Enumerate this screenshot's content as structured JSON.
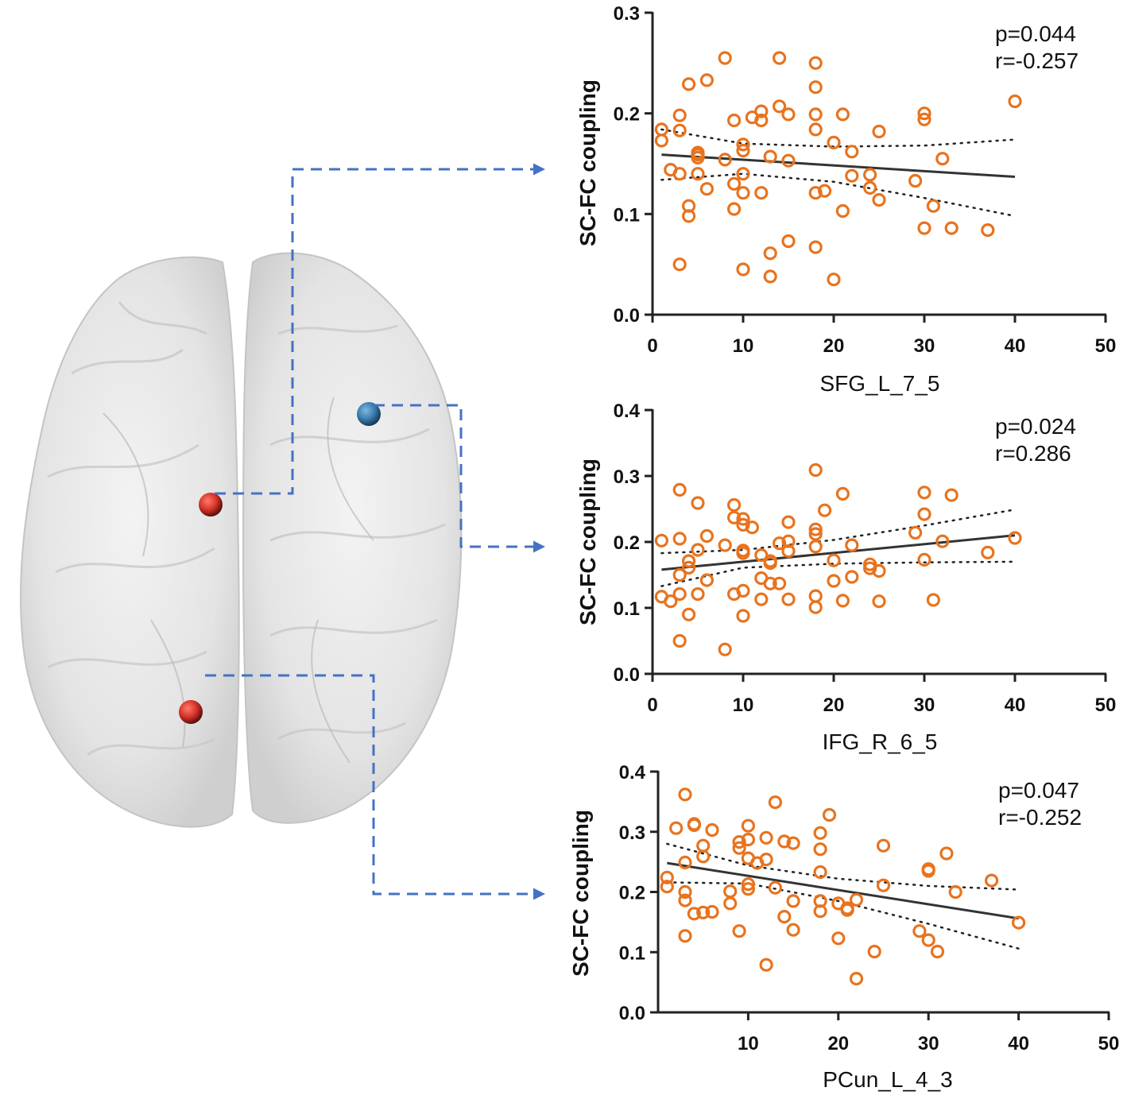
{
  "colors": {
    "point": "#e8731e",
    "brain_node_red": "#d9352a",
    "brain_node_blue": "#3c7fb0",
    "connector": "#4472c4"
  },
  "brain": {
    "nodes": [
      {
        "name": "SFG_L_7_5",
        "color": "red"
      },
      {
        "name": "IFG_R_6_5",
        "color": "blue"
      },
      {
        "name": "PCun_L_4_3",
        "color": "red"
      }
    ]
  },
  "chart_data": [
    {
      "type": "scatter",
      "xlabel": "SFG_L_7_5",
      "ylabel": "SC-FC coupling",
      "xlim": [
        0,
        50
      ],
      "ylim": [
        0,
        0.3
      ],
      "xticks": [
        0,
        10,
        20,
        30,
        40,
        50
      ],
      "xtick_labels": [
        "0",
        "10",
        "20",
        "30",
        "40",
        "50"
      ],
      "yticks": [
        0,
        0.1,
        0.2,
        0.3
      ],
      "ytick_labels": [
        "0.0",
        "0.1",
        "0.2",
        "0.3"
      ],
      "p_text": "p=0.044",
      "r_text": "r=-0.257",
      "fit": {
        "x": [
          1,
          40
        ],
        "y": [
          0.159,
          0.137
        ]
      },
      "ci_upper": [
        [
          1,
          0.184
        ],
        [
          10,
          0.17
        ],
        [
          20,
          0.167
        ],
        [
          30,
          0.168
        ],
        [
          40,
          0.174
        ]
      ],
      "ci_lower": [
        [
          1,
          0.134
        ],
        [
          10,
          0.14
        ],
        [
          20,
          0.132
        ],
        [
          30,
          0.116
        ],
        [
          40,
          0.098
        ]
      ],
      "points": [
        [
          1,
          0.184
        ],
        [
          1,
          0.173
        ],
        [
          2,
          0.144
        ],
        [
          3,
          0.198
        ],
        [
          3,
          0.183
        ],
        [
          3,
          0.14
        ],
        [
          3,
          0.05
        ],
        [
          4,
          0.229
        ],
        [
          4,
          0.108
        ],
        [
          4,
          0.098
        ],
        [
          5,
          0.161
        ],
        [
          5,
          0.159
        ],
        [
          5,
          0.156
        ],
        [
          5,
          0.14
        ],
        [
          6,
          0.233
        ],
        [
          6,
          0.125
        ],
        [
          8,
          0.255
        ],
        [
          8,
          0.154
        ],
        [
          9,
          0.193
        ],
        [
          9,
          0.13
        ],
        [
          9,
          0.105
        ],
        [
          10,
          0.169
        ],
        [
          10,
          0.163
        ],
        [
          10,
          0.14
        ],
        [
          10,
          0.121
        ],
        [
          10,
          0.045
        ],
        [
          11,
          0.196
        ],
        [
          12,
          0.202
        ],
        [
          12,
          0.193
        ],
        [
          12,
          0.121
        ],
        [
          13,
          0.157
        ],
        [
          13,
          0.061
        ],
        [
          13,
          0.038
        ],
        [
          14,
          0.255
        ],
        [
          14,
          0.207
        ],
        [
          15,
          0.199
        ],
        [
          15,
          0.153
        ],
        [
          15,
          0.073
        ],
        [
          18,
          0.25
        ],
        [
          18,
          0.226
        ],
        [
          18,
          0.199
        ],
        [
          18,
          0.184
        ],
        [
          18,
          0.121
        ],
        [
          18,
          0.067
        ],
        [
          19,
          0.123
        ],
        [
          20,
          0.171
        ],
        [
          20,
          0.035
        ],
        [
          21,
          0.199
        ],
        [
          21,
          0.103
        ],
        [
          22,
          0.162
        ],
        [
          22,
          0.138
        ],
        [
          24,
          0.139
        ],
        [
          24,
          0.126
        ],
        [
          25,
          0.182
        ],
        [
          25,
          0.114
        ],
        [
          29,
          0.133
        ],
        [
          30,
          0.2
        ],
        [
          30,
          0.194
        ],
        [
          30,
          0.086
        ],
        [
          31,
          0.108
        ],
        [
          32,
          0.155
        ],
        [
          33,
          0.086
        ],
        [
          37,
          0.084
        ],
        [
          40,
          0.212
        ]
      ]
    },
    {
      "type": "scatter",
      "xlabel": "IFG_R_6_5",
      "ylabel": "SC-FC coupling",
      "xlim": [
        0,
        50
      ],
      "ylim": [
        0,
        0.4
      ],
      "xticks": [
        0,
        10,
        20,
        30,
        40,
        50
      ],
      "xtick_labels": [
        "0",
        "10",
        "20",
        "30",
        "40",
        "50"
      ],
      "yticks": [
        0,
        0.1,
        0.2,
        0.3,
        0.4
      ],
      "ytick_labels": [
        "0.0",
        "0.1",
        "0.2",
        "0.3",
        "0.4"
      ],
      "p_text": "p=0.024",
      "r_text": "r=0.286",
      "fit": {
        "x": [
          1,
          40
        ],
        "y": [
          0.158,
          0.21
        ]
      },
      "ci_upper": [
        [
          1,
          0.183
        ],
        [
          10,
          0.188
        ],
        [
          20,
          0.203
        ],
        [
          30,
          0.225
        ],
        [
          40,
          0.249
        ]
      ],
      "ci_lower": [
        [
          1,
          0.133
        ],
        [
          10,
          0.161
        ],
        [
          20,
          0.167
        ],
        [
          30,
          0.169
        ],
        [
          40,
          0.17
        ]
      ],
      "points": [
        [
          1,
          0.202
        ],
        [
          1,
          0.117
        ],
        [
          2,
          0.11
        ],
        [
          3,
          0.279
        ],
        [
          3,
          0.205
        ],
        [
          3,
          0.15
        ],
        [
          3,
          0.121
        ],
        [
          3,
          0.05
        ],
        [
          4,
          0.171
        ],
        [
          4,
          0.161
        ],
        [
          4,
          0.09
        ],
        [
          5,
          0.259
        ],
        [
          5,
          0.188
        ],
        [
          5,
          0.121
        ],
        [
          6,
          0.209
        ],
        [
          6,
          0.142
        ],
        [
          8,
          0.195
        ],
        [
          8,
          0.037
        ],
        [
          9,
          0.256
        ],
        [
          9,
          0.237
        ],
        [
          9,
          0.121
        ],
        [
          10,
          0.235
        ],
        [
          10,
          0.226
        ],
        [
          10,
          0.187
        ],
        [
          10,
          0.183
        ],
        [
          10,
          0.126
        ],
        [
          10,
          0.088
        ],
        [
          11,
          0.222
        ],
        [
          12,
          0.18
        ],
        [
          12,
          0.145
        ],
        [
          12,
          0.113
        ],
        [
          13,
          0.171
        ],
        [
          13,
          0.168
        ],
        [
          13,
          0.137
        ],
        [
          14,
          0.198
        ],
        [
          14,
          0.137
        ],
        [
          15,
          0.23
        ],
        [
          15,
          0.201
        ],
        [
          15,
          0.186
        ],
        [
          15,
          0.113
        ],
        [
          18,
          0.309
        ],
        [
          18,
          0.219
        ],
        [
          18,
          0.212
        ],
        [
          18,
          0.193
        ],
        [
          18,
          0.118
        ],
        [
          18,
          0.101
        ],
        [
          19,
          0.248
        ],
        [
          20,
          0.172
        ],
        [
          20,
          0.141
        ],
        [
          21,
          0.273
        ],
        [
          21,
          0.111
        ],
        [
          22,
          0.195
        ],
        [
          22,
          0.147
        ],
        [
          24,
          0.166
        ],
        [
          24,
          0.16
        ],
        [
          25,
          0.156
        ],
        [
          25,
          0.11
        ],
        [
          29,
          0.214
        ],
        [
          30,
          0.275
        ],
        [
          30,
          0.242
        ],
        [
          30,
          0.173
        ],
        [
          31,
          0.112
        ],
        [
          32,
          0.201
        ],
        [
          33,
          0.271
        ],
        [
          37,
          0.184
        ],
        [
          40,
          0.206
        ]
      ]
    },
    {
      "type": "scatter",
      "xlabel": "PCun_L_4_3",
      "ylabel": "SC-FC coupling",
      "xlim": [
        0,
        50
      ],
      "ylim": [
        0,
        0.4
      ],
      "xticks": [
        10,
        20,
        30,
        40,
        50
      ],
      "xtick_labels": [
        "10",
        "20",
        "30",
        "40",
        "50"
      ],
      "yticks": [
        0,
        0.1,
        0.2,
        0.3,
        0.4
      ],
      "ytick_labels": [
        "0.0",
        "0.1",
        "0.2",
        "0.3",
        "0.4"
      ],
      "p_text": "p=0.047",
      "r_text": "r=-0.252",
      "fit": {
        "x": [
          1,
          40
        ],
        "y": [
          0.248,
          0.156
        ]
      },
      "ci_upper": [
        [
          1,
          0.28
        ],
        [
          10,
          0.244
        ],
        [
          20,
          0.222
        ],
        [
          30,
          0.21
        ],
        [
          40,
          0.204
        ]
      ],
      "ci_lower": [
        [
          1,
          0.216
        ],
        [
          10,
          0.214
        ],
        [
          20,
          0.185
        ],
        [
          30,
          0.147
        ],
        [
          40,
          0.106
        ]
      ],
      "points": [
        [
          1,
          0.224
        ],
        [
          1,
          0.209
        ],
        [
          2,
          0.306
        ],
        [
          3,
          0.362
        ],
        [
          3,
          0.249
        ],
        [
          3,
          0.2
        ],
        [
          3,
          0.186
        ],
        [
          3,
          0.127
        ],
        [
          4,
          0.313
        ],
        [
          4,
          0.311
        ],
        [
          4,
          0.164
        ],
        [
          5,
          0.277
        ],
        [
          5,
          0.259
        ],
        [
          5,
          0.166
        ],
        [
          6,
          0.303
        ],
        [
          6,
          0.167
        ],
        [
          8,
          0.201
        ],
        [
          8,
          0.181
        ],
        [
          9,
          0.283
        ],
        [
          9,
          0.273
        ],
        [
          9,
          0.135
        ],
        [
          10,
          0.31
        ],
        [
          10,
          0.287
        ],
        [
          10,
          0.256
        ],
        [
          10,
          0.213
        ],
        [
          10,
          0.205
        ],
        [
          11,
          0.248
        ],
        [
          12,
          0.29
        ],
        [
          12,
          0.254
        ],
        [
          12,
          0.079
        ],
        [
          13,
          0.349
        ],
        [
          13,
          0.207
        ],
        [
          14,
          0.284
        ],
        [
          14,
          0.159
        ],
        [
          15,
          0.281
        ],
        [
          15,
          0.185
        ],
        [
          15,
          0.137
        ],
        [
          18,
          0.298
        ],
        [
          18,
          0.271
        ],
        [
          18,
          0.233
        ],
        [
          18,
          0.185
        ],
        [
          18,
          0.168
        ],
        [
          19,
          0.328
        ],
        [
          20,
          0.181
        ],
        [
          20,
          0.123
        ],
        [
          21,
          0.173
        ],
        [
          21,
          0.17
        ],
        [
          22,
          0.187
        ],
        [
          22,
          0.056
        ],
        [
          24,
          0.101
        ],
        [
          25,
          0.277
        ],
        [
          25,
          0.211
        ],
        [
          29,
          0.135
        ],
        [
          30,
          0.238
        ],
        [
          30,
          0.235
        ],
        [
          30,
          0.12
        ],
        [
          31,
          0.101
        ],
        [
          32,
          0.264
        ],
        [
          33,
          0.2
        ],
        [
          37,
          0.219
        ],
        [
          40,
          0.149
        ]
      ]
    }
  ]
}
